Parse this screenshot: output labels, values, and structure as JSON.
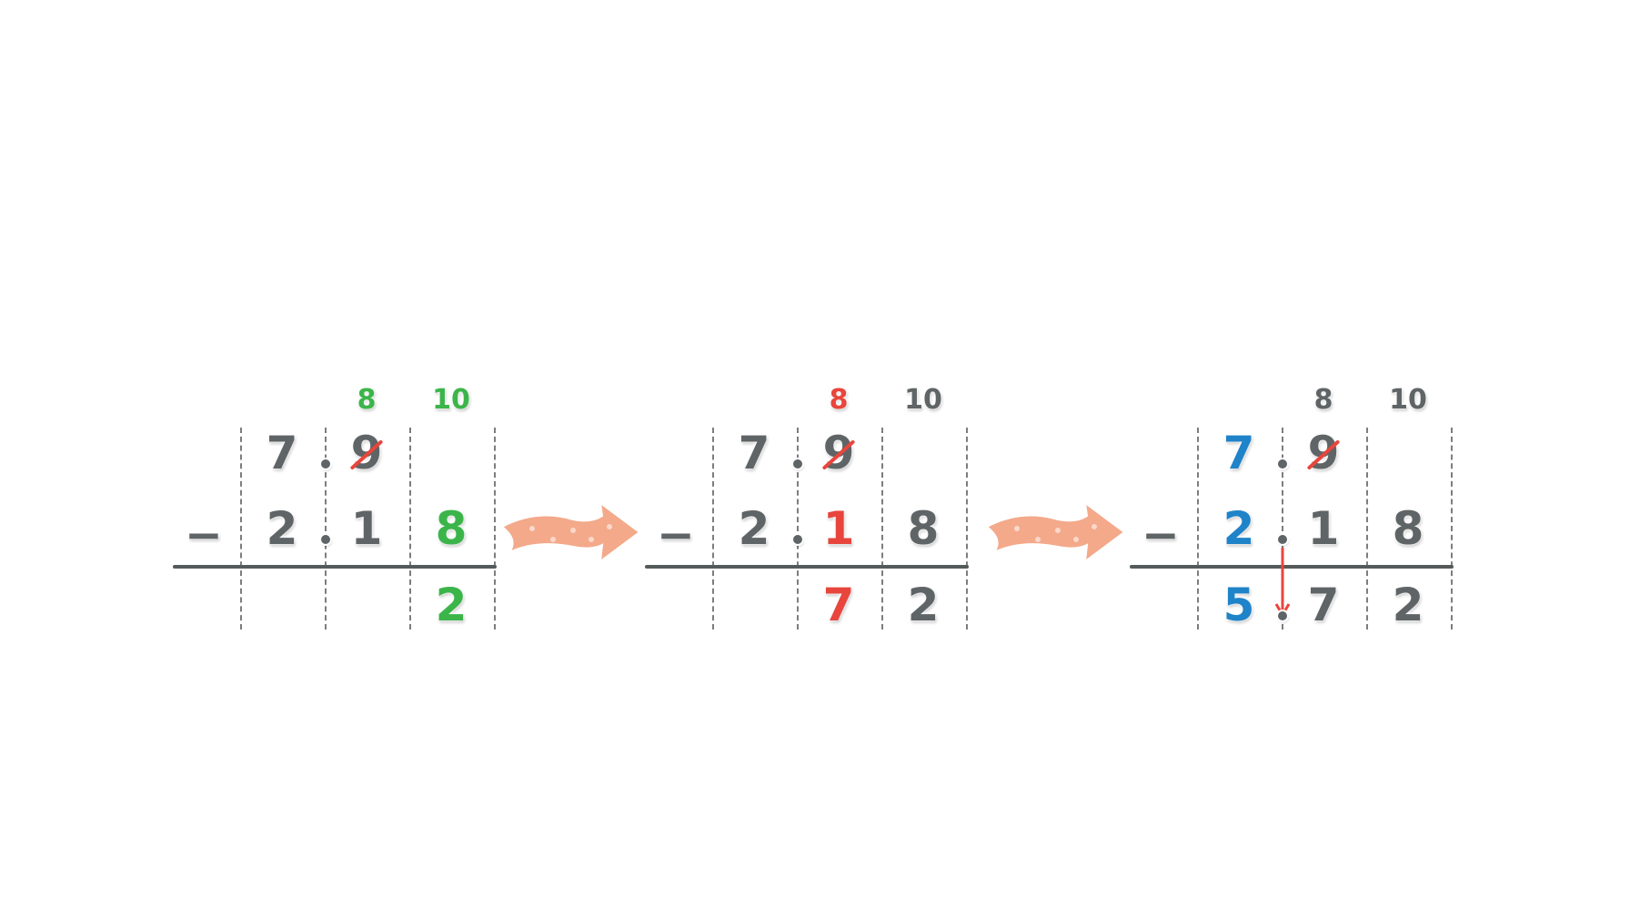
{
  "colors": {
    "default": "#5f6466",
    "highlight_green": "#3bb54a",
    "highlight_red": "#e8453c",
    "highlight_blue": "#1f83c9",
    "arrow": "#f3a98a"
  },
  "panels": [
    {
      "operator": "−",
      "regroup": [
        "8",
        "10"
      ],
      "regroup_colors": [
        "highlight_green",
        "highlight_green"
      ],
      "top": [
        "7",
        "9",
        ""
      ],
      "top_colors": [
        "default",
        "default",
        "default"
      ],
      "bottom": [
        "2",
        "1",
        "8"
      ],
      "bottom_colors": [
        "default",
        "default",
        "highlight_green"
      ],
      "result": [
        "",
        "",
        "2"
      ],
      "result_colors": [
        "default",
        "default",
        "highlight_green"
      ]
    },
    {
      "operator": "−",
      "regroup": [
        "8",
        "10"
      ],
      "regroup_colors": [
        "highlight_red",
        "default"
      ],
      "top": [
        "7",
        "9",
        ""
      ],
      "top_colors": [
        "default",
        "default",
        "default"
      ],
      "bottom": [
        "2",
        "1",
        "8"
      ],
      "bottom_colors": [
        "default",
        "highlight_red",
        "default"
      ],
      "result": [
        "",
        "7",
        "2"
      ],
      "result_colors": [
        "default",
        "highlight_red",
        "default"
      ]
    },
    {
      "operator": "−",
      "regroup": [
        "8",
        "10"
      ],
      "regroup_colors": [
        "default",
        "default"
      ],
      "top": [
        "7",
        "9",
        ""
      ],
      "top_colors": [
        "highlight_blue",
        "default",
        "default"
      ],
      "bottom": [
        "2",
        "1",
        "8"
      ],
      "bottom_colors": [
        "highlight_blue",
        "default",
        "default"
      ],
      "result": [
        "5",
        "7",
        "2"
      ],
      "result_colors": [
        "highlight_blue",
        "default",
        "default"
      ]
    }
  ]
}
